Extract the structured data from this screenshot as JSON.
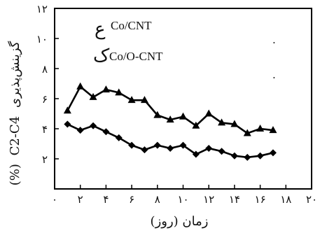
{
  "chart_data": {
    "type": "line",
    "title": "",
    "xlabel": "زمان (روز)",
    "ylabel_fa": "گزینش‌پذیری",
    "ylabel_formula": "C2-C4",
    "ylabel_unit": "(%)",
    "xlim": [
      0,
      20
    ],
    "ylim": [
      0,
      12
    ],
    "xticks": [
      0,
      2,
      4,
      6,
      8,
      10,
      12,
      14,
      16,
      18,
      20
    ],
    "yticks": [
      2,
      4,
      6,
      8,
      10,
      12
    ],
    "x_tick_labels": [
      "۰",
      "۲",
      "۴",
      "۶",
      "۸",
      "۱۰",
      "۱۲",
      "۱۴",
      "۱۶",
      "۱۸",
      "۲۰"
    ],
    "y_tick_labels": [
      "۲",
      "۴",
      "۶",
      "۸",
      "۱۰",
      "۱۲"
    ],
    "legend_position": "top-left",
    "grid": false,
    "series": [
      {
        "name": "Co/CNT",
        "marker": "diamond",
        "color": "#000000",
        "x": [
          1,
          2,
          3,
          4,
          5,
          6,
          7,
          8,
          9,
          10,
          11,
          12,
          13,
          14,
          15,
          16,
          17
        ],
        "y": [
          4.3,
          3.9,
          4.2,
          3.8,
          3.4,
          2.9,
          2.6,
          2.9,
          2.7,
          2.9,
          2.3,
          2.7,
          2.5,
          2.2,
          2.1,
          2.2,
          2.4
        ]
      },
      {
        "name": "Co/O-CNT",
        "marker": "triangle",
        "color": "#000000",
        "x": [
          1,
          2,
          3,
          4,
          5,
          6,
          7,
          8,
          9,
          10,
          11,
          12,
          13,
          14,
          15,
          16,
          17
        ],
        "y": [
          5.2,
          6.8,
          6.1,
          6.6,
          6.4,
          5.9,
          5.9,
          4.9,
          4.6,
          4.8,
          4.2,
          5.0,
          4.4,
          4.3,
          3.7,
          4.0,
          3.9
        ]
      }
    ]
  },
  "legend": {
    "symbols": [
      "ع",
      "ک"
    ]
  },
  "stray_marks": [
    ".",
    "."
  ]
}
